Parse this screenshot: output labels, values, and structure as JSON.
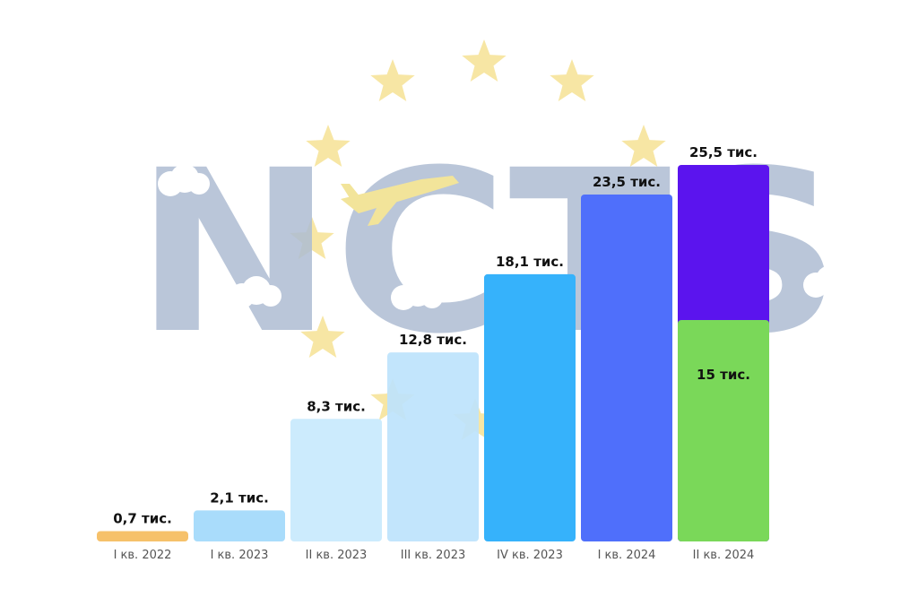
{
  "background": {
    "logo_text": "NCTS",
    "logo_color": "#aebdd3",
    "star_color": "#f7e6a4",
    "cloud_color": "#ffffff",
    "plane_color": "#f2e49a"
  },
  "chart_data": {
    "type": "bar",
    "title": "",
    "xlabel": "",
    "ylabel": "",
    "ylim": [
      0,
      25.5
    ],
    "grid": false,
    "categories": [
      "I кв. 2022",
      "I кв. 2023",
      "II кв. 2023",
      "III кв. 2023",
      "IV кв. 2023",
      "I кв. 2024",
      "II кв. 2024"
    ],
    "values": [
      0.7,
      2.1,
      8.3,
      12.8,
      18.1,
      23.5,
      25.5
    ],
    "value_labels": [
      "0,7 тис.",
      "2,1 тис.",
      "8,3 тис.",
      "12,8 тис.",
      "18,1 тис.",
      "23,5 тис.",
      "25,5 тис."
    ],
    "colors": [
      "#f6c16a",
      "#a9dcfb",
      "#c8e9fd",
      "#bde3fc",
      "#36b2fb",
      "#4f6ffb",
      "#5b14ee"
    ],
    "segment_overlay": {
      "category": "II кв. 2024",
      "value": 15,
      "label": "15 тис.",
      "color": "#7ad859"
    }
  }
}
